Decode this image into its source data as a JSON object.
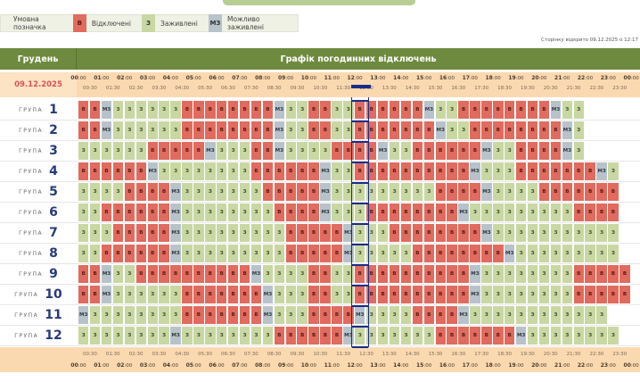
{
  "legend": {
    "title": "Умовна позначка",
    "items": [
      {
        "code": "В",
        "label": "Відключені",
        "color": "#e06b5e"
      },
      {
        "code": "З",
        "label": "Заживлені",
        "color": "#c9d7a3"
      },
      {
        "code": "МЗ",
        "label": "Можливо заживлені",
        "color": "#b7c2cb"
      }
    ]
  },
  "opened_text": "Сторінку відкрито 09.12.2025 о 12:17",
  "header": {
    "month": "Грудень",
    "title": "Графік погодинних відключень"
  },
  "date": "09.12.2025",
  "hours": [
    "00:00",
    "01:00",
    "02:00",
    "03:00",
    "04:00",
    "05:00",
    "06:00",
    "07:00",
    "08:00",
    "09:00",
    "10:00",
    "11:00",
    "12:00",
    "13:00",
    "14:00",
    "15:00",
    "16:00",
    "17:00",
    "18:00",
    "19:00",
    "20:00",
    "21:00",
    "22:00",
    "23:00",
    "00:00"
  ],
  "half_hours": [
    "00:30",
    "01:30",
    "02:30",
    "03:30",
    "04:30",
    "05:30",
    "06:30",
    "07:30",
    "08:30",
    "09:30",
    "10:30",
    "11:30",
    "12:30",
    "13:30",
    "14:30",
    "15:30",
    "16:30",
    "17:30",
    "18:30",
    "19:30",
    "20:30",
    "21:30",
    "22:30",
    "23:30"
  ],
  "group_word": "ГРУПА",
  "current_slot": 24,
  "groups": [
    {
      "num": "1",
      "slots": "BBMZZZZZZZBBBBBBBBMZZZBBZZBBBBBBMZZZBBBBBBBBMZZZ"
    },
    {
      "num": "2",
      "slots": "BBMZZZZZZZBBBBBBBBMZZZBBZZBBBBBBBMZZZBBBBBBBBMZZ"
    },
    {
      "num": "3",
      "slots": "ZZZZZZBBBBBMZZZZBBMZZZZZBBBBMZZZBBBBBBMZZZBBBBMZZ"
    },
    {
      "num": "4",
      "slots": "BBBBBBMZZZZZZZZZBBBBBBMZZZBBBBBBBBBBMZZZZBBBBBBBMZZ"
    },
    {
      "num": "5",
      "slots": "ZZZZBBBBMZZZZZZZZBBBBBMZZZZZZZZZZBBBBMZZZZZBBBBBBB"
    },
    {
      "num": "6",
      "slots": "ZZBBBBBBMZZZZZZZZZBBBBMZZZZBBBBBBBBMZZZZZZZZZZBBBB"
    },
    {
      "num": "7",
      "slots": "ZZZBBBBBMZZZZZZZZZZBBBBBMZZZZBBBBBBBBMZZZZZZZZZZZZ"
    },
    {
      "num": "8",
      "slots": "ZZBBBBBBMZZZZZZZZZZBBBBBMZZZZZZBBBBBBBBMZZZZZZZZZZ"
    },
    {
      "num": "9",
      "slots": "BBMZZZBBBBBBBBBBMZZZZZBBZZBBBBBBBBBBMZZZZZZZZZBBBBB"
    },
    {
      "num": "10",
      "slots": "BBMZZZZZZZBBBBBBBMZZZZBBZZBBBBBBBBBBMZZZZZZZZZBBBBB"
    },
    {
      "num": "11",
      "slots": "MZZZZZZZZZBBBBBBBMZZZZBBBBMZZZZZBBBBMZZZZZZZZZZZZZ"
    },
    {
      "num": "12",
      "slots": "ZZZZZZZZMZZZZZZZZZBBBBBBMZZZZZZZZBBBBBBBMZZZZZZZZZ"
    }
  ]
}
